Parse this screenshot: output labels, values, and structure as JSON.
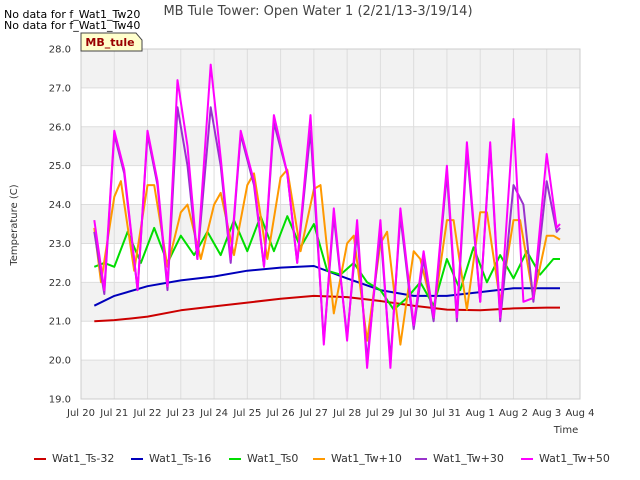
{
  "chart_data": {
    "type": "line",
    "title": "MB Tule Tower: Open Water 1 (2/21/13-3/19/14)",
    "nodata_notes": [
      "No data for f_Wat1_Tw20",
      "No data for f_Wat1_Tw40"
    ],
    "badge": "MB_tule",
    "xlabel": "Time",
    "ylabel": "Temperature (C)",
    "ylim": [
      19.0,
      28.0
    ],
    "xlim": [
      0,
      15
    ],
    "yticks": [
      "19.0",
      "20.0",
      "21.0",
      "22.0",
      "23.0",
      "24.0",
      "25.0",
      "26.0",
      "27.0",
      "28.0"
    ],
    "xticks": [
      "Jul 20",
      "Jul 21",
      "Jul 22",
      "Jul 23",
      "Jul 24",
      "Jul 25",
      "Jul 26",
      "Jul 27",
      "Jul 28",
      "Jul 29",
      "Jul 30",
      "Jul 31",
      "Aug 1",
      "Aug 2",
      "Aug 3",
      "Aug 4"
    ],
    "legend_position": "bottom",
    "grid": true,
    "series": [
      {
        "name": "Wat1_Ts-32",
        "color": "#cc0000",
        "x": [
          0.4,
          1,
          1.5,
          2,
          3,
          4,
          5,
          6,
          7,
          8,
          9,
          10,
          11,
          12,
          13,
          14,
          14.4
        ],
        "values": [
          21.0,
          21.03,
          21.07,
          21.12,
          21.28,
          21.38,
          21.48,
          21.58,
          21.65,
          21.62,
          21.52,
          21.4,
          21.3,
          21.28,
          21.33,
          21.35,
          21.35
        ]
      },
      {
        "name": "Wat1_Ts-16",
        "color": "#0000bb",
        "x": [
          0.4,
          1,
          2,
          3,
          4,
          5,
          6,
          7,
          8,
          9,
          10,
          11,
          12,
          13,
          14,
          14.4
        ],
        "values": [
          21.4,
          21.65,
          21.9,
          22.05,
          22.15,
          22.3,
          22.38,
          22.42,
          22.1,
          21.8,
          21.65,
          21.65,
          21.75,
          21.85,
          21.85,
          21.85
        ]
      },
      {
        "name": "Wat1_Ts0",
        "color": "#00dd00",
        "x": [
          0.4,
          0.7,
          1,
          1.4,
          1.8,
          2.2,
          2.6,
          3,
          3.4,
          3.8,
          4.2,
          4.6,
          5,
          5.4,
          5.8,
          6.2,
          6.6,
          7,
          7.4,
          7.8,
          8.2,
          8.6,
          9,
          9.4,
          9.8,
          10.2,
          10.6,
          11,
          11.4,
          11.8,
          12.2,
          12.6,
          13,
          13.4,
          13.8,
          14.2,
          14.4
        ],
        "values": [
          22.4,
          22.5,
          22.4,
          23.3,
          22.5,
          23.4,
          22.5,
          23.2,
          22.7,
          23.3,
          22.7,
          23.6,
          22.8,
          23.7,
          22.8,
          23.7,
          22.9,
          23.5,
          22.3,
          22.2,
          22.5,
          22.0,
          21.8,
          21.3,
          21.6,
          22.0,
          21.4,
          22.6,
          21.8,
          22.9,
          22.0,
          22.7,
          22.1,
          22.8,
          22.2,
          22.6,
          22.6
        ]
      },
      {
        "name": "Wat1_Tw+10",
        "color": "#ff9900",
        "x": [
          0.4,
          0.6,
          1,
          1.2,
          1.6,
          2,
          2.2,
          2.6,
          3,
          3.2,
          3.6,
          4,
          4.2,
          4.6,
          5,
          5.2,
          5.6,
          6,
          6.2,
          6.6,
          7,
          7.2,
          7.6,
          8,
          8.2,
          8.6,
          9,
          9.2,
          9.6,
          10,
          10.2,
          10.6,
          11,
          11.2,
          11.6,
          12,
          12.2,
          12.6,
          13,
          13.2,
          13.6,
          14,
          14.2,
          14.4
        ],
        "values": [
          23.4,
          22.0,
          24.2,
          24.6,
          22.3,
          24.5,
          24.5,
          22.4,
          23.8,
          24.0,
          22.6,
          24.0,
          24.3,
          22.7,
          24.5,
          24.8,
          22.6,
          24.7,
          24.9,
          22.8,
          24.4,
          24.5,
          21.2,
          23.0,
          23.2,
          20.5,
          23.0,
          23.3,
          20.4,
          22.8,
          22.6,
          21.2,
          23.6,
          23.6,
          21.3,
          23.8,
          23.8,
          21.5,
          23.6,
          23.6,
          21.6,
          23.2,
          23.2,
          23.1
        ]
      },
      {
        "name": "Wat1_Tw+30",
        "color": "#9933cc",
        "x": [
          0.4,
          0.7,
          1,
          1.3,
          1.7,
          2,
          2.3,
          2.6,
          2.9,
          3.2,
          3.5,
          3.9,
          4.2,
          4.5,
          4.8,
          5.2,
          5.5,
          5.8,
          6.2,
          6.5,
          6.9,
          7.3,
          7.6,
          8,
          8.3,
          8.6,
          9,
          9.3,
          9.6,
          10,
          10.3,
          10.6,
          11,
          11.3,
          11.6,
          12,
          12.3,
          12.6,
          13,
          13.3,
          13.6,
          14,
          14.3,
          14.4
        ],
        "values": [
          23.3,
          21.7,
          25.8,
          24.8,
          21.8,
          25.8,
          24.5,
          21.8,
          26.5,
          25.0,
          22.6,
          26.5,
          25.0,
          22.5,
          25.8,
          24.5,
          22.4,
          26.1,
          24.8,
          22.5,
          25.9,
          20.5,
          23.7,
          20.6,
          23.3,
          20.0,
          23.3,
          20.0,
          23.7,
          20.8,
          22.6,
          21.0,
          24.8,
          21.0,
          25.4,
          21.5,
          25.5,
          21.0,
          24.5,
          24.0,
          21.5,
          24.6,
          23.3,
          23.4
        ]
      },
      {
        "name": "Wat1_Tw+50",
        "color": "#ff00ff",
        "x": [
          0.4,
          0.7,
          1,
          1.3,
          1.7,
          2,
          2.3,
          2.6,
          2.9,
          3.2,
          3.5,
          3.9,
          4.2,
          4.5,
          4.8,
          5.2,
          5.5,
          5.8,
          6.2,
          6.5,
          6.9,
          7.3,
          7.6,
          8,
          8.3,
          8.6,
          9,
          9.3,
          9.6,
          10,
          10.3,
          10.6,
          11,
          11.3,
          11.6,
          12,
          12.3,
          12.6,
          13,
          13.3,
          13.6,
          14,
          14.3,
          14.4
        ],
        "values": [
          23.6,
          21.8,
          25.9,
          24.9,
          21.8,
          25.9,
          24.6,
          21.9,
          27.2,
          25.5,
          22.6,
          27.6,
          25.2,
          22.6,
          25.9,
          24.6,
          22.4,
          26.3,
          24.8,
          22.5,
          26.3,
          20.4,
          23.9,
          20.5,
          23.6,
          19.8,
          23.6,
          19.8,
          23.9,
          20.9,
          22.8,
          21.1,
          25.0,
          21.1,
          25.6,
          21.5,
          25.6,
          21.1,
          26.2,
          21.5,
          21.6,
          25.3,
          23.4,
          23.5
        ]
      }
    ]
  }
}
